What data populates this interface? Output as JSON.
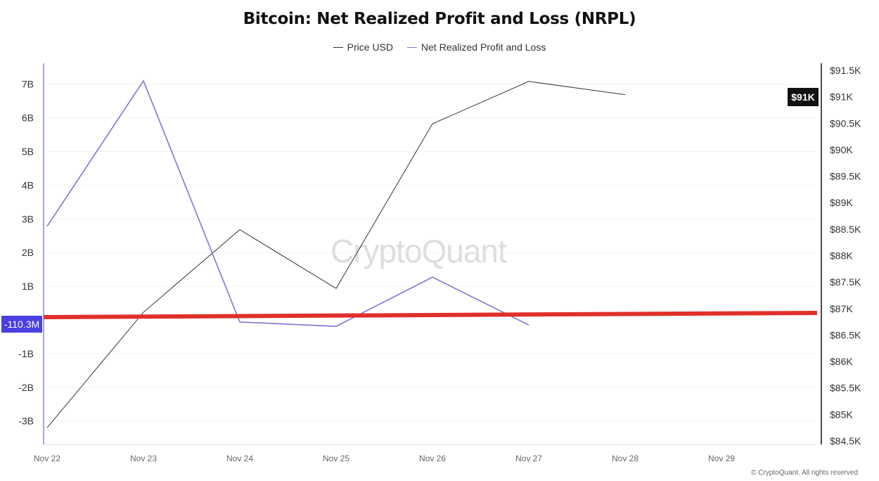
{
  "chart_data": {
    "type": "line",
    "title": "Bitcoin: Net Realized Profit and Loss (NRPL)",
    "categories": [
      "Nov 22",
      "Nov 23",
      "Nov 24",
      "Nov 25",
      "Nov 26",
      "Nov 27",
      "Nov 28",
      "Nov 29"
    ],
    "series": [
      {
        "name": "Price USD",
        "axis": "right",
        "color": "#333333",
        "values": [
          84750,
          86930,
          88490,
          87380,
          90490,
          91290,
          91040,
          null
        ]
      },
      {
        "name": "Net Realized Profit and Loss",
        "axis": "left",
        "color": "#7b75d6",
        "values": [
          2780000000.0,
          7100000000.0,
          -60000000.0,
          -190000000.0,
          1270000000.0,
          -150000000.0,
          null,
          null
        ]
      }
    ],
    "left_axis": {
      "ticks": [
        "7B",
        "6B",
        "5B",
        "4B",
        "3B",
        "2B",
        "1B",
        "-1B",
        "-2B",
        "-3B"
      ],
      "tick_values": [
        7000000000.0,
        6000000000.0,
        5000000000.0,
        4000000000.0,
        3000000000.0,
        2000000000.0,
        1000000000.0,
        -1000000000.0,
        -2000000000.0,
        -3000000000.0
      ],
      "color": "#7b75d6"
    },
    "right_axis": {
      "ticks": [
        "$91.5K",
        "$91K",
        "$90.5K",
        "$90K",
        "$89.5K",
        "$89K",
        "$88.5K",
        "$88K",
        "$87.5K",
        "$87K",
        "$86.5K",
        "$86K",
        "$85.5K",
        "$85K",
        "$84.5K"
      ],
      "range": [
        84500,
        91500
      ]
    },
    "crosshair_labels": {
      "left": "-110.3M",
      "left_color": "#4a3fe0",
      "right": "$91K",
      "right_color": "#111111"
    },
    "annotation_line": {
      "color": "#e0302a",
      "description_value_start": -110300000.0
    },
    "grid": true,
    "legend_position": "top-center"
  },
  "watermark": "CryptoQuant",
  "copyright": "© CryptoQuant. All rights reserved"
}
